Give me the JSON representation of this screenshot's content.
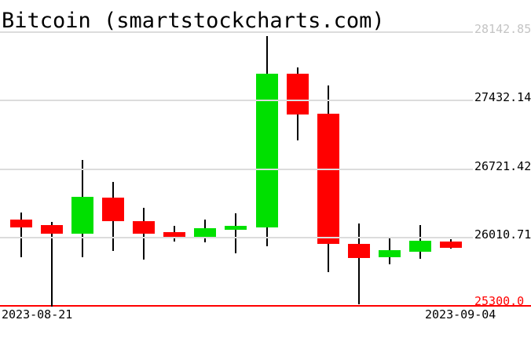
{
  "title": "Bitcoin (smartstockcharts.com)",
  "chart_data": {
    "type": "candlestick",
    "symbol": "Bitcoin",
    "source_watermark": "smartstockcharts.com",
    "background": "#ffffff",
    "grid": "horizontal-only",
    "grid_color": "#dcdcdc",
    "up_color": "#00e000",
    "down_color": "#ff0000",
    "wick_color": "#000000",
    "y_axis_side": "right",
    "y_axis": {
      "range": [
        25300.0,
        28142.85
      ],
      "ticks": [
        {
          "label": "28142.85",
          "price": 28142.85,
          "color": "#c4c4c4"
        },
        {
          "label": "27432.14",
          "price": 27432.14,
          "color": "#000000"
        },
        {
          "label": "26721.42",
          "price": 26721.42,
          "color": "#000000"
        },
        {
          "label": "26010.71",
          "price": 26010.71,
          "color": "#000000"
        }
      ]
    },
    "support_line": {
      "label": "25300.0",
      "price": 25300.0,
      "color": "#ff0000"
    },
    "x_labels": [
      "2023-08-21",
      "2023-09-04"
    ],
    "candles": [
      {
        "open": 26199,
        "high": 26267,
        "low": 25806,
        "close": 26118
      },
      {
        "open": 26137,
        "high": 26170,
        "low": 25290,
        "close": 26050
      },
      {
        "open": 26050,
        "high": 26817,
        "low": 25806,
        "close": 26429
      },
      {
        "open": 26423,
        "high": 26586,
        "low": 25869,
        "close": 26180
      },
      {
        "open": 26180,
        "high": 26321,
        "low": 25779,
        "close": 26050
      },
      {
        "open": 26064,
        "high": 26131,
        "low": 25964,
        "close": 26004
      },
      {
        "open": 26009,
        "high": 26194,
        "low": 25956,
        "close": 26107
      },
      {
        "open": 26094,
        "high": 26261,
        "low": 25847,
        "close": 26131
      },
      {
        "open": 26118,
        "high": 28102,
        "low": 25923,
        "close": 27715
      },
      {
        "open": 27712,
        "high": 27777,
        "low": 27019,
        "close": 27290
      },
      {
        "open": 27298,
        "high": 27593,
        "low": 25652,
        "close": 25942
      },
      {
        "open": 25942,
        "high": 26159,
        "low": 25319,
        "close": 25796
      },
      {
        "open": 25806,
        "high": 26004,
        "low": 25728,
        "close": 25877
      },
      {
        "open": 25863,
        "high": 26139,
        "low": 25787,
        "close": 25977
      },
      {
        "open": 25972,
        "high": 25990,
        "low": 25891,
        "close": 25901
      }
    ]
  }
}
